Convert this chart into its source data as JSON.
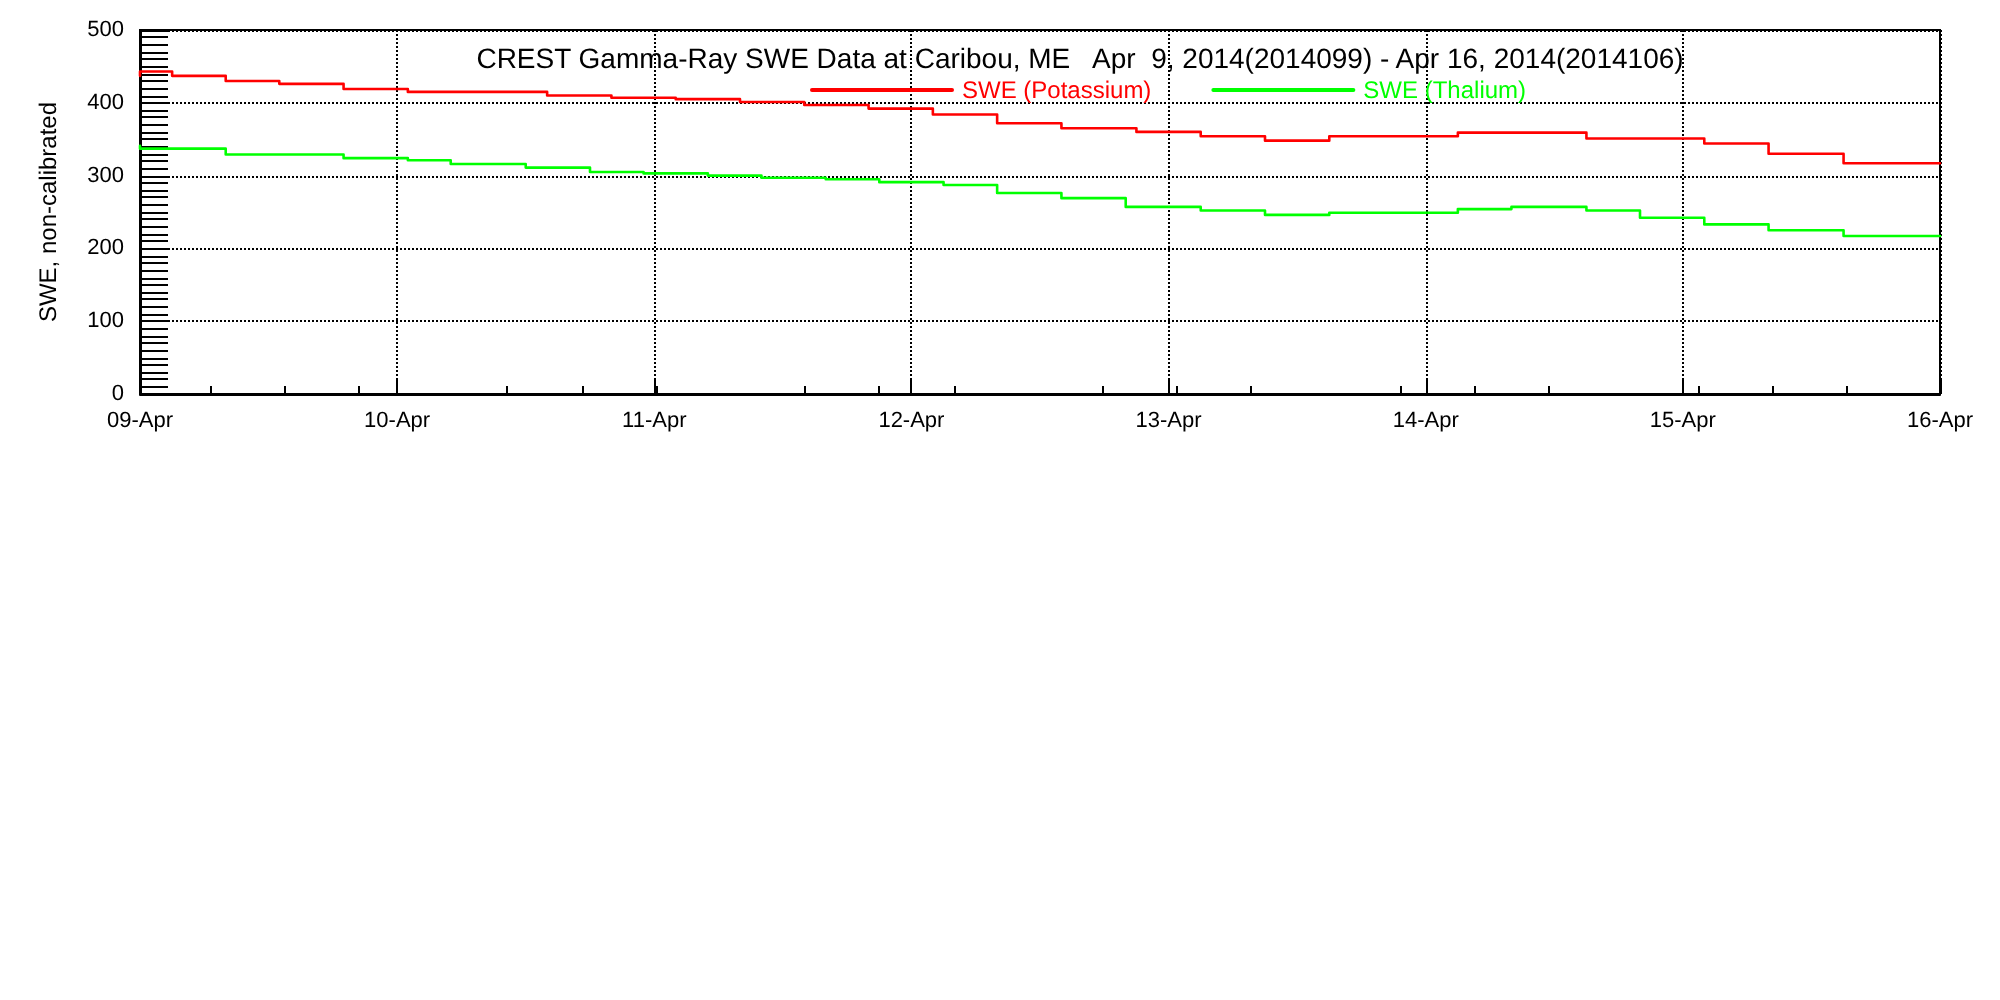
{
  "chart_data": {
    "type": "step",
    "title": "CREST Gamma-Ray SWE Data at Caribou, ME   Apr  9, 2014(2014099) - Apr 16, 2014(2014106)",
    "ylabel": "SWE, non-calibrated",
    "series": [
      {
        "name": "SWE (Potassium)",
        "color": "#ff0000",
        "x": [
          "2014-04-09T00:00",
          "2014-04-09T03:00",
          "2014-04-09T08:00",
          "2014-04-09T13:00",
          "2014-04-09T19:00",
          "2014-04-10T01:00",
          "2014-04-10T14:00",
          "2014-04-10T20:00",
          "2014-04-11T02:00",
          "2014-04-11T08:00",
          "2014-04-11T14:00",
          "2014-04-11T20:00",
          "2014-04-12T02:00",
          "2014-04-12T08:00",
          "2014-04-12T14:00",
          "2014-04-12T21:00",
          "2014-04-13T03:00",
          "2014-04-13T09:00",
          "2014-04-13T15:00",
          "2014-04-14T03:00",
          "2014-04-14T15:00",
          "2014-04-15T02:00",
          "2014-04-15T08:00",
          "2014-04-15T15:00",
          "2014-04-15T21:00",
          "2014-04-16T00:00"
        ],
        "values": [
          437,
          443,
          437,
          430,
          426,
          419,
          415,
          410,
          407,
          405,
          401,
          397,
          392,
          384,
          372,
          365,
          360,
          354,
          348,
          354,
          359,
          351,
          344,
          330,
          317,
          317
        ]
      },
      {
        "name": "SWE (Thalium)",
        "color": "#00ff00",
        "x": [
          "2014-04-09T00:00",
          "2014-04-09T08:00",
          "2014-04-09T19:00",
          "2014-04-10T01:00",
          "2014-04-10T05:00",
          "2014-04-10T12:00",
          "2014-04-10T18:00",
          "2014-04-10T23:00",
          "2014-04-11T05:00",
          "2014-04-11T10:00",
          "2014-04-11T16:00",
          "2014-04-11T21:00",
          "2014-04-12T03:00",
          "2014-04-12T08:00",
          "2014-04-12T14:00",
          "2014-04-12T20:00",
          "2014-04-13T03:00",
          "2014-04-13T09:00",
          "2014-04-13T15:00",
          "2014-04-14T03:00",
          "2014-04-14T08:00",
          "2014-04-14T15:00",
          "2014-04-14T20:00",
          "2014-04-15T02:00",
          "2014-04-15T08:00",
          "2014-04-15T15:00",
          "2014-04-15T21:00",
          "2014-04-16T00:00"
        ],
        "values": [
          341,
          337,
          329,
          324,
          321,
          316,
          311,
          305,
          303,
          300,
          297,
          295,
          291,
          287,
          276,
          269,
          257,
          252,
          246,
          249,
          254,
          257,
          252,
          242,
          233,
          225,
          217,
          217
        ]
      }
    ],
    "xlim": [
      "2014-04-09",
      "2014-04-16"
    ],
    "xticks": [
      {
        "value": "2014-04-09",
        "label": "09-Apr"
      },
      {
        "value": "2014-04-10",
        "label": "10-Apr"
      },
      {
        "value": "2014-04-11",
        "label": "11-Apr"
      },
      {
        "value": "2014-04-12",
        "label": "12-Apr"
      },
      {
        "value": "2014-04-13",
        "label": "13-Apr"
      },
      {
        "value": "2014-04-14",
        "label": "14-Apr"
      },
      {
        "value": "2014-04-15",
        "label": "15-Apr"
      },
      {
        "value": "2014-04-16",
        "label": "16-Apr"
      }
    ],
    "ylim": [
      0,
      500
    ],
    "yticks": [
      0,
      100,
      200,
      300,
      400,
      500
    ],
    "grid": true,
    "legend": "top",
    "marker": "none",
    "line_style": "solid"
  }
}
